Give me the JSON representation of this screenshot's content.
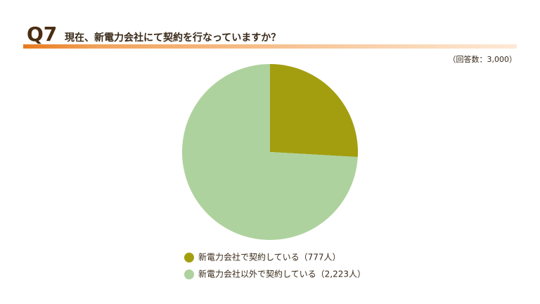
{
  "chart_data": {
    "type": "pie",
    "label": "Q7",
    "title": "現在、新電力会社にて契約を行なっていますか？",
    "note": "（回答数：3,000）",
    "categories": [
      "新電力会社で契約している（777人）",
      "新電力会社以外で契約している（2,223人）"
    ],
    "values": [
      777,
      2223
    ],
    "colors": [
      "#a39e10",
      "#aed29e"
    ],
    "legend": "bottom"
  }
}
